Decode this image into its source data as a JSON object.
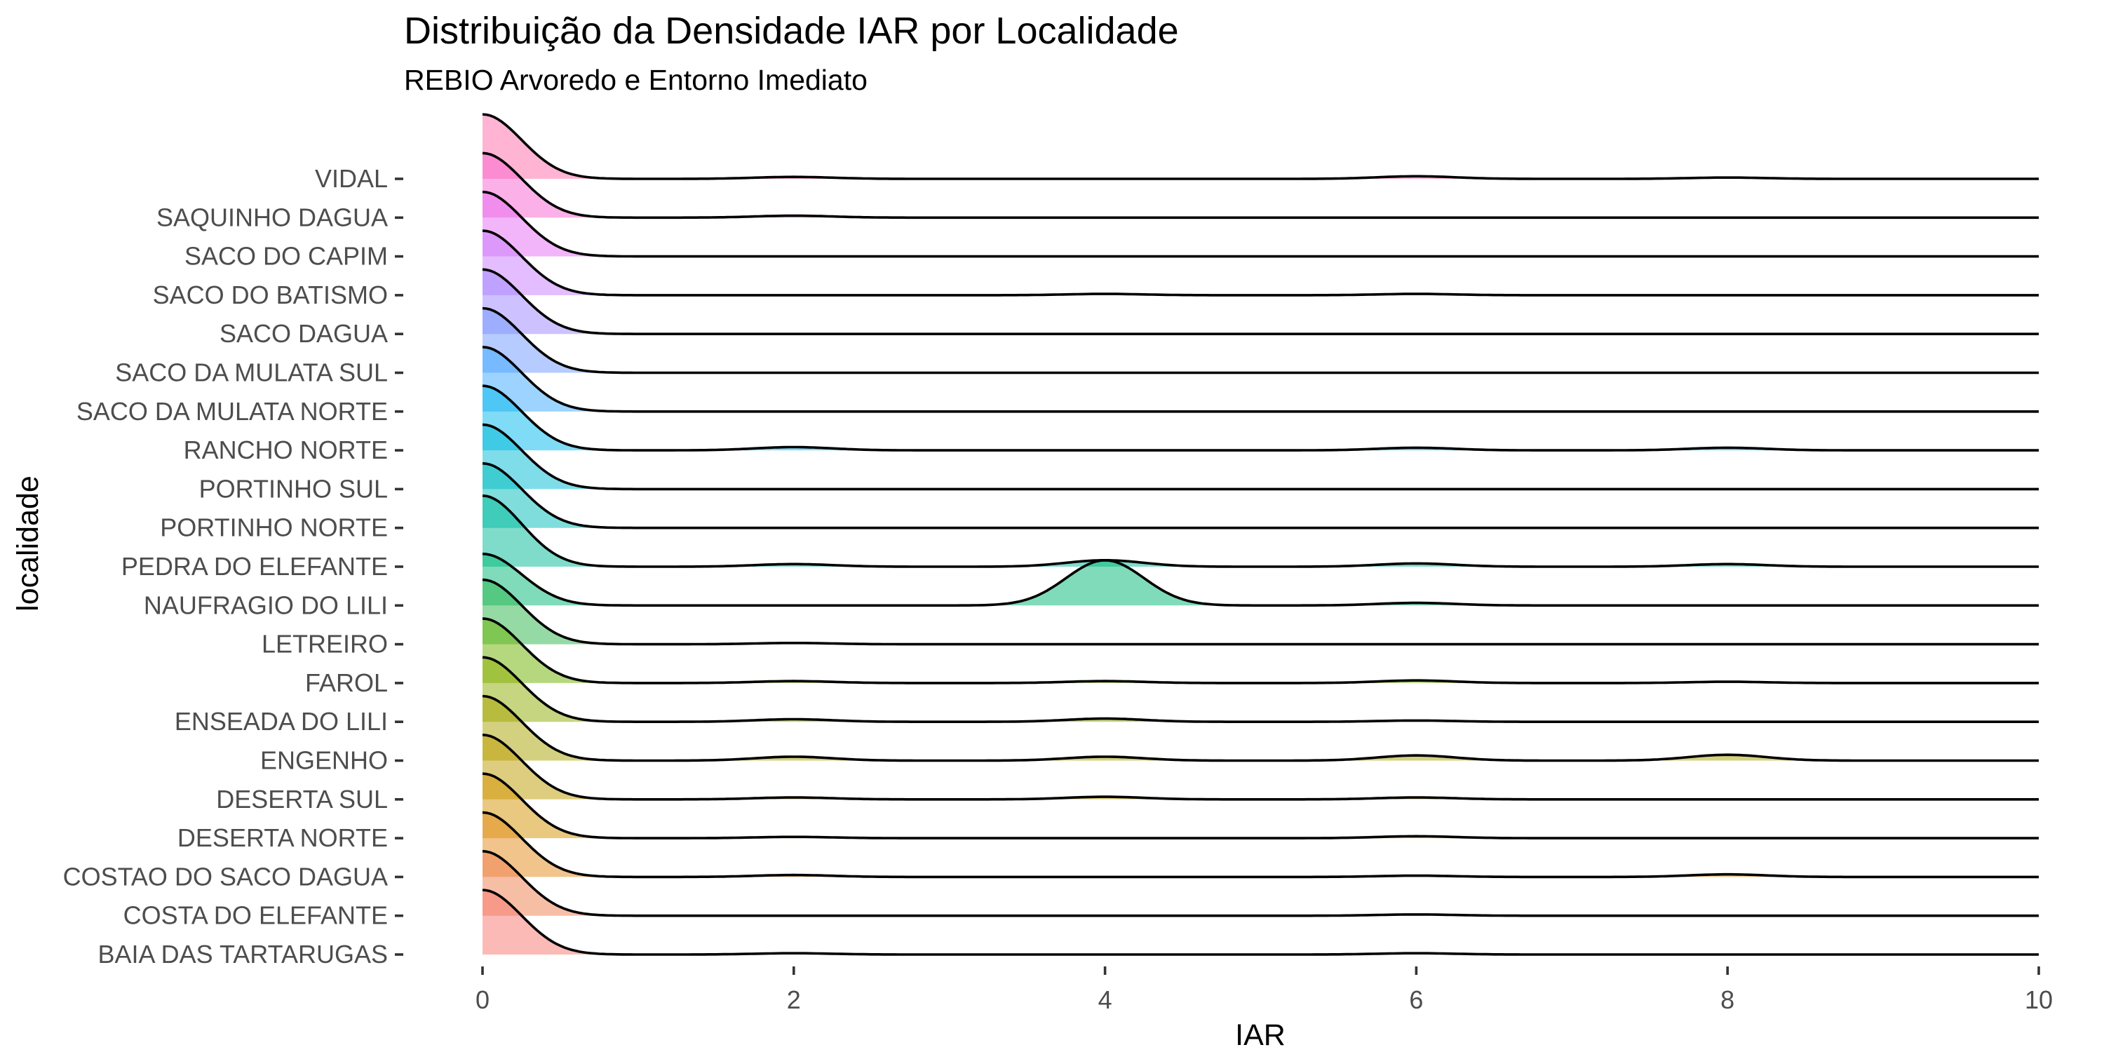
{
  "chart_data": {
    "type": "ridgeline",
    "title": "Distribuição da Densidade IAR por Localidade",
    "subtitle": "REBIO Arvoredo e Entorno Imediato",
    "xlabel": "IAR",
    "ylabel": "localidade",
    "xlim": [
      0,
      10
    ],
    "x_ticks": [
      0,
      2,
      4,
      6,
      8,
      10
    ],
    "grid": false,
    "legend": "none",
    "series": [
      {
        "name": "BAIA DAS TARTARUGAS",
        "color": "#F8766D",
        "peaks": [
          {
            "x": 0,
            "h": 1.0
          },
          {
            "x": 2,
            "h": 0.02
          },
          {
            "x": 6,
            "h": 0.02
          }
        ]
      },
      {
        "name": "COSTA DO ELEFANTE",
        "color": "#F07E4D",
        "peaks": [
          {
            "x": 0,
            "h": 1.0
          },
          {
            "x": 6,
            "h": 0.02
          }
        ]
      },
      {
        "name": "COSTAO DO SACO DAGUA",
        "color": "#E3891A",
        "peaks": [
          {
            "x": 0,
            "h": 1.0
          },
          {
            "x": 2,
            "h": 0.03
          },
          {
            "x": 6,
            "h": 0.02
          },
          {
            "x": 8,
            "h": 0.04
          }
        ]
      },
      {
        "name": "DESERTA NORTE",
        "color": "#D49200",
        "peaks": [
          {
            "x": 0,
            "h": 1.0
          },
          {
            "x": 2,
            "h": 0.02
          },
          {
            "x": 6,
            "h": 0.03
          }
        ]
      },
      {
        "name": "DESERTA SUL",
        "color": "#BF9B00",
        "peaks": [
          {
            "x": 0,
            "h": 1.0
          },
          {
            "x": 2,
            "h": 0.03
          },
          {
            "x": 4,
            "h": 0.04
          },
          {
            "x": 6,
            "h": 0.03
          }
        ]
      },
      {
        "name": "ENGENHO",
        "color": "#A8A400",
        "peaks": [
          {
            "x": 0,
            "h": 1.0
          },
          {
            "x": 2,
            "h": 0.06
          },
          {
            "x": 4,
            "h": 0.06
          },
          {
            "x": 6,
            "h": 0.08
          },
          {
            "x": 8,
            "h": 0.09
          }
        ]
      },
      {
        "name": "ENSEADA DO LILI",
        "color": "#8EAB00",
        "peaks": [
          {
            "x": 0,
            "h": 1.0
          },
          {
            "x": 2,
            "h": 0.04
          },
          {
            "x": 4,
            "h": 0.05
          },
          {
            "x": 6,
            "h": 0.02
          }
        ]
      },
      {
        "name": "FAROL",
        "color": "#6BB100",
        "peaks": [
          {
            "x": 0,
            "h": 1.0
          },
          {
            "x": 2,
            "h": 0.03
          },
          {
            "x": 4,
            "h": 0.03
          },
          {
            "x": 6,
            "h": 0.04
          },
          {
            "x": 8,
            "h": 0.02
          }
        ]
      },
      {
        "name": "LETREIRO",
        "color": "#2CB54A",
        "peaks": [
          {
            "x": 0,
            "h": 1.0
          },
          {
            "x": 2,
            "h": 0.02
          }
        ]
      },
      {
        "name": "NAUFRAGIO DO LILI",
        "color": "#00B774",
        "peaks": [
          {
            "x": 0,
            "h": 0.8
          },
          {
            "x": 4,
            "h": 0.7
          },
          {
            "x": 6,
            "h": 0.04
          }
        ]
      },
      {
        "name": "PEDRA DO ELEFANTE",
        "color": "#00BA97",
        "peaks": [
          {
            "x": 0,
            "h": 1.1
          },
          {
            "x": 2,
            "h": 0.04
          },
          {
            "x": 4,
            "h": 0.1
          },
          {
            "x": 6,
            "h": 0.05
          },
          {
            "x": 8,
            "h": 0.04
          }
        ]
      },
      {
        "name": "PORTINHO NORTE",
        "color": "#00BDB8",
        "peaks": [
          {
            "x": 0,
            "h": 1.0
          }
        ]
      },
      {
        "name": "PORTINHO SUL",
        "color": "#00BCD6",
        "peaks": [
          {
            "x": 0,
            "h": 1.0
          }
        ]
      },
      {
        "name": "RANCHO NORTE",
        "color": "#00B8EE",
        "peaks": [
          {
            "x": 0,
            "h": 1.0
          },
          {
            "x": 2,
            "h": 0.05
          },
          {
            "x": 6,
            "h": 0.04
          },
          {
            "x": 8,
            "h": 0.04
          }
        ]
      },
      {
        "name": "SACO DA MULATA NORTE",
        "color": "#39A9FF",
        "peaks": [
          {
            "x": 0,
            "h": 1.0
          }
        ]
      },
      {
        "name": "SACO DA MULATA SUL",
        "color": "#6E97FF",
        "peaks": [
          {
            "x": 0,
            "h": 1.0
          }
        ]
      },
      {
        "name": "SACO DAGUA",
        "color": "#9B85FF",
        "peaks": [
          {
            "x": 0,
            "h": 1.0
          }
        ]
      },
      {
        "name": "SACO DO BATISMO",
        "color": "#C77CFF",
        "peaks": [
          {
            "x": 0,
            "h": 1.0
          },
          {
            "x": 4,
            "h": 0.02
          },
          {
            "x": 6,
            "h": 0.02
          }
        ]
      },
      {
        "name": "SACO DO CAPIM",
        "color": "#E76BF3",
        "peaks": [
          {
            "x": 0,
            "h": 1.0
          }
        ]
      },
      {
        "name": "SAQUINHO DAGUA",
        "color": "#F763D0",
        "peaks": [
          {
            "x": 0,
            "h": 1.0
          },
          {
            "x": 2,
            "h": 0.03
          }
        ]
      },
      {
        "name": "VIDAL",
        "color": "#FF6AA8",
        "peaks": [
          {
            "x": 0,
            "h": 1.0
          },
          {
            "x": 2,
            "h": 0.03
          },
          {
            "x": 6,
            "h": 0.04
          },
          {
            "x": 8,
            "h": 0.02
          }
        ]
      }
    ]
  }
}
